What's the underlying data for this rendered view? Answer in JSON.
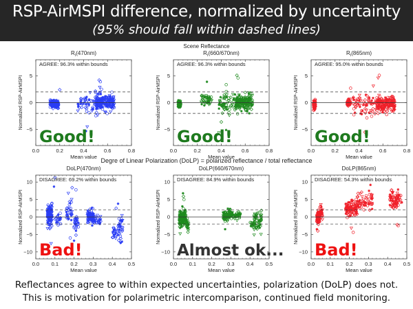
{
  "header": {
    "title": "RSP-AirMSPI difference, normalized by uncertainty",
    "subtitle": "(95% should fall within dashed lines)"
  },
  "rows": {
    "row1_label": "Scene Reflectance",
    "row2_label": "Degre of Linear Polarization (DoLP) = polarized reflectance / total reflectance"
  },
  "footer": {
    "line1": "Reflectances agree to within expected uncertainties, polarization (DoLP) does not.",
    "line2": "This is motivation for polarimetric intercomparison, continued field monitoring."
  },
  "chart_data": [
    {
      "type": "scatter",
      "title": "R_I(470nm)",
      "title_main": "R",
      "title_sub": "I",
      "title_rest": "(470nm)",
      "xlabel": "Mean value",
      "ylabel": "Normalized RSP-AirMSPI",
      "xlim": [
        0.0,
        0.8
      ],
      "ylim": [
        -8,
        8
      ],
      "xticks": [
        "0.0",
        "0.2",
        "0.4",
        "0.6",
        "0.8"
      ],
      "yticks": [
        -5,
        0,
        5
      ],
      "bounds": [
        -2,
        2
      ],
      "annotation": "AGREE:  96.3% within bounds",
      "verdict": "Good!",
      "verdict_color": "#1e7a1e",
      "color": "#2a3df5",
      "clusters": [
        {
          "x": [
            0.12,
            0.19
          ],
          "y": [
            -1.5,
            1.0
          ],
          "n": 140,
          "sy": 0.35
        },
        {
          "x": [
            0.35,
            0.55
          ],
          "y": [
            -3.0,
            3.0
          ],
          "n": 70,
          "sy": 1.0
        },
        {
          "x": [
            0.5,
            0.66
          ],
          "y": [
            -2.5,
            2.5
          ],
          "n": 170,
          "sy": 0.7
        }
      ],
      "outliers": [
        [
          0.53,
          4.2
        ],
        [
          0.54,
          3.9
        ],
        [
          0.43,
          -4.5
        ],
        [
          0.42,
          -5.3
        ],
        [
          0.2,
          2.4
        ],
        [
          0.55,
          2.5
        ]
      ]
    },
    {
      "type": "scatter",
      "title": "R_I(660/670nm)",
      "title_main": "R",
      "title_sub": "I",
      "title_rest": "(660/670nm)",
      "xlabel": "Mean value",
      "ylabel": "Normalized RSP-AirMSPI",
      "xlim": [
        0.0,
        0.8
      ],
      "ylim": [
        -8,
        8
      ],
      "xticks": [
        "0.0",
        "0.2",
        "0.4",
        "0.6",
        "0.8"
      ],
      "yticks": [
        -5,
        0,
        5
      ],
      "bounds": [
        -2,
        2
      ],
      "annotation": "AGREE:  96.3% within bounds",
      "verdict": "Good!",
      "verdict_color": "#1e7a1e",
      "color": "#1f8a1f",
      "clusters": [
        {
          "x": [
            0.04,
            0.06
          ],
          "y": [
            -0.8,
            0.3
          ],
          "n": 60,
          "sy": 0.3
        },
        {
          "x": [
            0.23,
            0.32
          ],
          "y": [
            -0.5,
            1.5
          ],
          "n": 45,
          "sy": 0.5
        },
        {
          "x": [
            0.38,
            0.56
          ],
          "y": [
            -3.5,
            3.0
          ],
          "n": 80,
          "sy": 1.1
        },
        {
          "x": [
            0.52,
            0.66
          ],
          "y": [
            -2.0,
            2.0
          ],
          "n": 170,
          "sy": 0.7
        }
      ],
      "outliers": [
        [
          0.28,
          3.9
        ],
        [
          0.53,
          5.1
        ],
        [
          0.54,
          4.6
        ],
        [
          0.38,
          -5.6
        ],
        [
          0.44,
          -5.1
        ],
        [
          0.4,
          -3.6
        ]
      ]
    },
    {
      "type": "scatter",
      "title": "R_I(865nm)",
      "title_main": "R",
      "title_sub": "I",
      "title_rest": "(865nm)",
      "xlabel": "Mean value",
      "ylabel": "Normalized RSP-AirMSPI",
      "xlim": [
        0.0,
        0.8
      ],
      "ylim": [
        -8,
        8
      ],
      "xticks": [
        "0.0",
        "0.2",
        "0.4",
        "0.6",
        "0.8"
      ],
      "yticks": [
        -5,
        0,
        5
      ],
      "bounds": [
        -2,
        2
      ],
      "annotation": "AGREE:  95.0% within bounds",
      "verdict": "Good!",
      "verdict_color": "#1e7a1e",
      "color": "#f0202a",
      "clusters": [
        {
          "x": [
            0.02,
            0.035
          ],
          "y": [
            -1.5,
            0.5
          ],
          "n": 80,
          "sy": 0.45
        },
        {
          "x": [
            0.3,
            0.33
          ],
          "y": [
            -0.8,
            0.8
          ],
          "n": 45,
          "sy": 0.4
        },
        {
          "x": [
            0.35,
            0.55
          ],
          "y": [
            -3.5,
            2.5
          ],
          "n": 70,
          "sy": 1.1
        },
        {
          "x": [
            0.55,
            0.7
          ],
          "y": [
            -2.0,
            1.5
          ],
          "n": 170,
          "sy": 0.7
        }
      ],
      "outliers": [
        [
          0.57,
          5.1
        ],
        [
          0.56,
          4.6
        ],
        [
          0.41,
          -5.8
        ],
        [
          0.45,
          -5.5
        ],
        [
          0.33,
          2.7
        ],
        [
          0.52,
          3.1
        ]
      ]
    },
    {
      "type": "scatter",
      "title": "DoLP(470nm)",
      "xlabel": "Mean value",
      "ylabel": "Normalized RSP-AirMSPI",
      "xlim": [
        0.0,
        0.5
      ],
      "ylim": [
        -12,
        12
      ],
      "xticks": [
        "0.0",
        "0.1",
        "0.2",
        "0.3",
        "0.4",
        "0.5"
      ],
      "yticks": [
        -10,
        -5,
        0,
        5,
        10
      ],
      "bounds": [
        -2,
        2
      ],
      "annotation": "DISAGREE: 69.2% within bounds",
      "verdict": "Bad!",
      "verdict_color": "#ee1111",
      "color": "#2a3df5",
      "clusters": [
        {
          "x": [
            0.06,
            0.085
          ],
          "y": [
            -4,
            5
          ],
          "n": 120,
          "sy": 1.6
        },
        {
          "x": [
            0.1,
            0.13
          ],
          "y": [
            -3,
            1
          ],
          "n": 20,
          "sy": 1.0
        },
        {
          "x": [
            0.16,
            0.19
          ],
          "y": [
            -1,
            4.5
          ],
          "n": 30,
          "sy": 1.5
        },
        {
          "x": [
            0.2,
            0.225
          ],
          "y": [
            -4,
            0
          ],
          "n": 25,
          "sy": 1.0
        },
        {
          "x": [
            0.27,
            0.3
          ],
          "y": [
            -2,
            2.5
          ],
          "n": 90,
          "sy": 0.9
        },
        {
          "x": [
            0.3,
            0.34
          ],
          "y": [
            -2,
            0.5
          ],
          "n": 30,
          "sy": 0.6
        },
        {
          "x": [
            0.4,
            0.42
          ],
          "y": [
            -6,
            -3
          ],
          "n": 20,
          "sy": 0.8
        },
        {
          "x": [
            0.43,
            0.455
          ],
          "y": [
            -7,
            1
          ],
          "n": 35,
          "sy": 2.0
        }
      ],
      "outliers": [
        [
          0.1,
          11.2
        ],
        [
          0.095,
          8.7
        ],
        [
          0.19,
          8.4
        ],
        [
          0.21,
          7.8
        ],
        [
          0.17,
          6.8
        ],
        [
          0.2,
          -6.8
        ],
        [
          0.21,
          -5.2
        ],
        [
          0.18,
          -6.0
        ],
        [
          0.08,
          -7.6
        ],
        [
          0.43,
          3.8
        ],
        [
          0.42,
          2.5
        ]
      ]
    },
    {
      "type": "scatter",
      "title": "DoLP(660/670nm)",
      "xlabel": "Mean value",
      "ylabel": "Normalized RSP-AirMSPI",
      "xlim": [
        0.0,
        0.5
      ],
      "ylim": [
        -12,
        12
      ],
      "xticks": [
        "0.0",
        "0.1",
        "0.2",
        "0.3",
        "0.4",
        "0.5"
      ],
      "yticks": [
        -10,
        -5,
        0,
        5,
        10
      ],
      "bounds": [
        -2,
        2
      ],
      "annotation": "DISAGREE: 84.9% within bounds",
      "verdict": "Almost ok...",
      "verdict_color": "#333333",
      "color": "#1f8a1f",
      "clusters": [
        {
          "x": [
            0.03,
            0.065
          ],
          "y": [
            -3,
            2.5
          ],
          "n": 130,
          "sy": 1.2
        },
        {
          "x": [
            0.065,
            0.08
          ],
          "y": [
            -4,
            -0.5
          ],
          "n": 25,
          "sy": 0.9
        },
        {
          "x": [
            0.26,
            0.3
          ],
          "y": [
            -1,
            2
          ],
          "n": 80,
          "sy": 0.7
        },
        {
          "x": [
            0.3,
            0.35
          ],
          "y": [
            -1,
            1.5
          ],
          "n": 40,
          "sy": 0.6
        },
        {
          "x": [
            0.4,
            0.42
          ],
          "y": [
            -3.5,
            -1
          ],
          "n": 12,
          "sy": 0.7
        },
        {
          "x": [
            0.42,
            0.46
          ],
          "y": [
            -4.5,
            2
          ],
          "n": 60,
          "sy": 1.6
        }
      ],
      "outliers": [
        [
          0.05,
          6.8
        ],
        [
          0.052,
          5.9
        ],
        [
          0.055,
          5.0
        ],
        [
          0.035,
          -4.8
        ],
        [
          0.27,
          -3.5
        ]
      ]
    },
    {
      "type": "scatter",
      "title": "DoLP(865nm)",
      "xlabel": "Mean value",
      "ylabel": "Normalized RSP-AirMSPI",
      "xlim": [
        0.0,
        0.5
      ],
      "ylim": [
        -12,
        12
      ],
      "xticks": [
        "0.0",
        "0.1",
        "0.2",
        "0.3",
        "0.4",
        "0.5"
      ],
      "yticks": [
        -10,
        -5,
        0,
        5,
        10
      ],
      "bounds": [
        -2,
        2
      ],
      "annotation": "DISAGREE: 54.3% within bounds",
      "verdict": "Bad!",
      "verdict_color": "#ee1111",
      "color": "#f0202a",
      "clusters": [
        {
          "x": [
            0.03,
            0.045
          ],
          "y": [
            -2,
            1.5
          ],
          "n": 90,
          "sy": 0.9
        },
        {
          "x": [
            0.045,
            0.06
          ],
          "y": [
            -1,
            3.5
          ],
          "n": 35,
          "sy": 1.1
        },
        {
          "x": [
            0.18,
            0.24
          ],
          "y": [
            0,
            4.5
          ],
          "n": 110,
          "sy": 1.1
        },
        {
          "x": [
            0.24,
            0.32
          ],
          "y": [
            2,
            7
          ],
          "n": 60,
          "sy": 1.3
        },
        {
          "x": [
            0.41,
            0.46
          ],
          "y": [
            2,
            8
          ],
          "n": 70,
          "sy": 1.3
        },
        {
          "x": [
            0.46,
            0.48
          ],
          "y": [
            4,
            6
          ],
          "n": 6,
          "sy": 0.6
        }
      ],
      "outliers": [
        [
          0.03,
          -3.5
        ],
        [
          0.035,
          -4.0
        ],
        [
          0.22,
          -4.4
        ],
        [
          0.21,
          -3.2
        ],
        [
          0.31,
          9.2
        ],
        [
          0.45,
          -2.2
        ],
        [
          0.455,
          -2.5
        ]
      ]
    }
  ]
}
